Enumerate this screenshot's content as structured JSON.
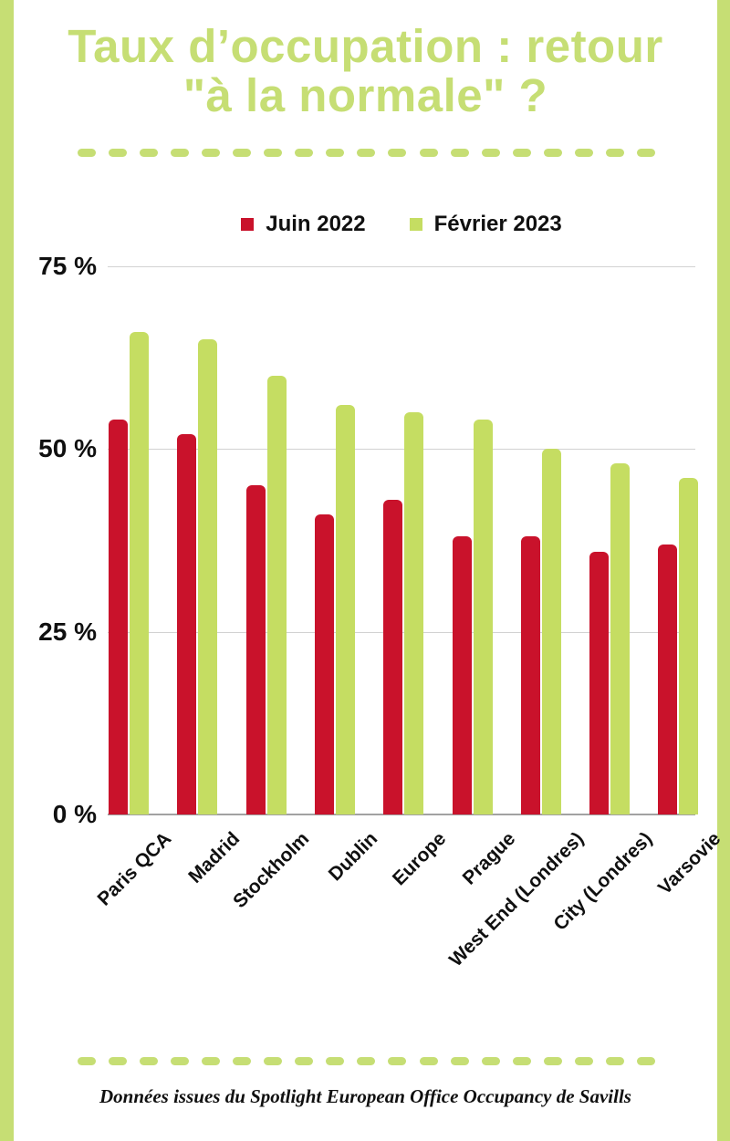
{
  "page": {
    "title_line1": "Taux d’occupation : retour",
    "title_line2": "\"à la normale\" ?",
    "footer": "Données issues du Spotlight European Office Occupancy de Savills"
  },
  "colors": {
    "accent_green": "#C6DE74",
    "bar_red": "#C9122B",
    "bar_green": "#C5DD62"
  },
  "chart_data": {
    "type": "bar",
    "title": "Taux d’occupation : retour \"à la normale\" ?",
    "categories": [
      "Paris QCA",
      "Madrid",
      "Stockholm",
      "Dublin",
      "Europe",
      "Prague",
      "West End (Londres)",
      "City (Londres)",
      "Varsovie"
    ],
    "series": [
      {
        "name": "Juin 2022",
        "color": "#C9122B",
        "values": [
          54,
          52,
          45,
          41,
          43,
          38,
          38,
          36,
          37
        ]
      },
      {
        "name": "Février 2023",
        "color": "#C5DD62",
        "values": [
          66,
          65,
          60,
          56,
          55,
          54,
          50,
          48,
          46
        ]
      }
    ],
    "xlabel": "",
    "ylabel": "",
    "ylim": [
      0,
      75
    ],
    "yticks": [
      {
        "value": 75,
        "label": "75 %"
      },
      {
        "value": 50,
        "label": "50 %"
      },
      {
        "value": 25,
        "label": "25 %"
      },
      {
        "value": 0,
        "label": "0 %"
      }
    ],
    "grid": true,
    "legend_position": "top",
    "unit": "%"
  }
}
